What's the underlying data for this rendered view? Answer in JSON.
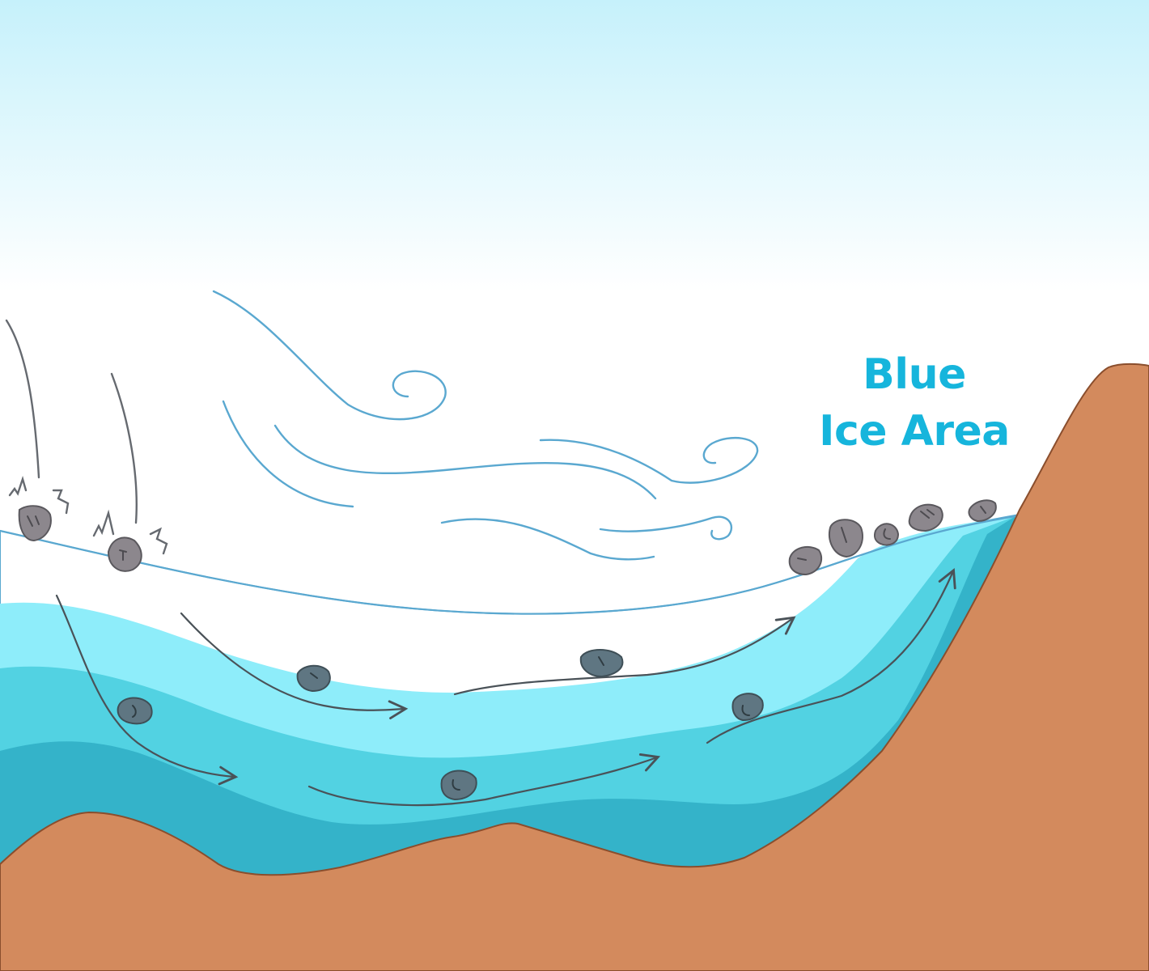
{
  "diagram": {
    "label": {
      "line1": "Blue",
      "line2": "Ice Area"
    }
  },
  "colors": {
    "sky_top": "#c6f1fb",
    "sky_bottom": "#ffffff",
    "snow": "#ffffff",
    "ice_light": "#8eedfa",
    "ice_mid": "#52d2e2",
    "ice_dark": "#34b3c9",
    "bedrock": "#d38a5d",
    "bedrock_outline": "#8a4e2d",
    "rock": "#8c878d",
    "rock_submerged": "#5f7682",
    "wind": "#5aa8d0",
    "flow_arrow": "#4a5258",
    "label": "#16b5dc"
  }
}
